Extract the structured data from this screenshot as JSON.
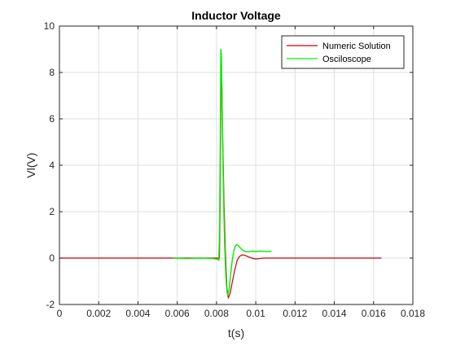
{
  "chart_data": {
    "type": "line",
    "title": "Inductor Voltage",
    "xlabel": "t(s)",
    "ylabel": "Vl(V)",
    "xlim": [
      0,
      0.018
    ],
    "ylim": [
      -2,
      10
    ],
    "xticks": [
      0,
      0.002,
      0.004,
      0.006,
      0.008,
      0.01,
      0.012,
      0.014,
      0.016,
      0.018
    ],
    "xtick_labels": [
      "0",
      "0.002",
      "0.004",
      "0.006",
      "0.008",
      "0.01",
      "0.012",
      "0.014",
      "0.016",
      "0.018"
    ],
    "yticks": [
      -2,
      0,
      2,
      4,
      6,
      8,
      10
    ],
    "ytick_labels": [
      "-2",
      "0",
      "2",
      "4",
      "6",
      "8",
      "10"
    ],
    "grid": true,
    "legend_position": "top-right",
    "series": [
      {
        "name": "Numeric Solution",
        "color": "#cc0000",
        "x": [
          0,
          0.008,
          0.00815,
          0.00818,
          0.00821,
          0.00824,
          0.00828,
          0.00832,
          0.00838,
          0.00845,
          0.00853,
          0.0086,
          0.0087,
          0.0088,
          0.00892,
          0.00905,
          0.00918,
          0.00932,
          0.00945,
          0.0096,
          0.0098,
          0.01,
          0.0102,
          0.0104,
          0.011,
          0.013,
          0.015,
          0.0164
        ],
        "y": [
          0,
          0,
          0,
          2.0,
          5.5,
          8.85,
          7.2,
          5.0,
          2.5,
          0.3,
          -1.3,
          -1.72,
          -1.5,
          -1.05,
          -0.55,
          -0.1,
          0.08,
          0.14,
          0.12,
          0.06,
          0.0,
          -0.04,
          -0.02,
          0.0,
          0.0,
          0.0,
          0.0,
          0.0
        ]
      },
      {
        "name": "Osciloscope",
        "color": "#00ee00",
        "x": [
          0.0058,
          0.0065,
          0.0072,
          0.0078,
          0.00805,
          0.00812,
          0.00816,
          0.00819,
          0.00822,
          0.00825,
          0.00829,
          0.00833,
          0.00838,
          0.00843,
          0.00848,
          0.00853,
          0.00858,
          0.00865,
          0.00872,
          0.0088,
          0.00888,
          0.00895,
          0.00902,
          0.0091,
          0.0092,
          0.00932,
          0.00945,
          0.0096,
          0.0098,
          0.01,
          0.0103,
          0.0106,
          0.0108
        ],
        "y": [
          0,
          -0.02,
          0.0,
          -0.02,
          -0.05,
          -0.1,
          1.5,
          5.0,
          9.0,
          8.7,
          6.5,
          4.0,
          1.8,
          0.2,
          -0.8,
          -1.45,
          -1.6,
          -1.3,
          -0.7,
          -0.1,
          0.3,
          0.5,
          0.58,
          0.55,
          0.45,
          0.35,
          0.28,
          0.27,
          0.3,
          0.29,
          0.3,
          0.28,
          0.3
        ]
      }
    ]
  }
}
